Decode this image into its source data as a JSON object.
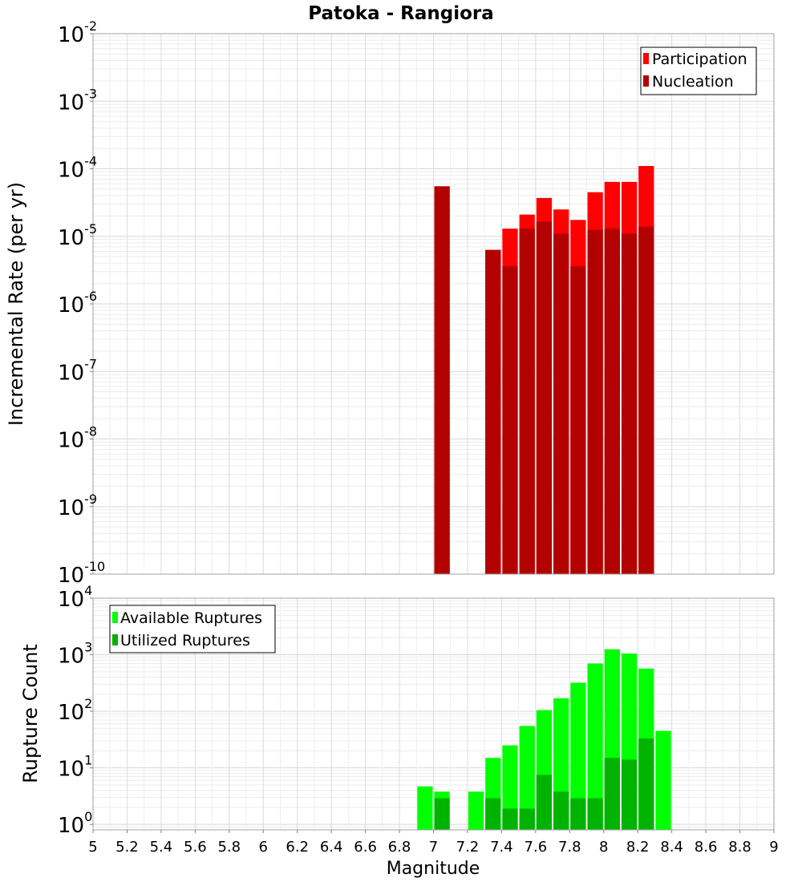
{
  "chart_data": [
    {
      "type": "bar",
      "title": "Patoka - Rangiora",
      "ylabel": "Incremental Rate (per yr)",
      "yscale": "log",
      "ylim": [
        1e-10,
        0.01
      ],
      "xlim": [
        5,
        9
      ],
      "legend_position": "top-right",
      "grid": true,
      "yticks": [
        {
          "base": "10",
          "exp": "-10"
        },
        {
          "base": "10",
          "exp": "-9"
        },
        {
          "base": "10",
          "exp": "-8"
        },
        {
          "base": "10",
          "exp": "-7"
        },
        {
          "base": "10",
          "exp": "-6"
        },
        {
          "base": "10",
          "exp": "-5"
        },
        {
          "base": "10",
          "exp": "-4"
        },
        {
          "base": "10",
          "exp": "-3"
        },
        {
          "base": "10",
          "exp": "-2"
        }
      ],
      "series": [
        {
          "name": "Participation",
          "color": "#ff0000",
          "x": [
            7.05,
            7.35,
            7.45,
            7.55,
            7.65,
            7.75,
            7.85,
            7.95,
            8.05,
            8.15,
            8.25
          ],
          "values": [
            5.5e-05,
            6.3e-06,
            1.3e-05,
            2.1e-05,
            3.7e-05,
            2.5e-05,
            1.75e-05,
            4.5e-05,
            6.4e-05,
            6.4e-05,
            0.00011
          ]
        },
        {
          "name": "Nucleation",
          "color": "#b30000",
          "x": [
            7.05,
            7.35,
            7.45,
            7.55,
            7.65,
            7.75,
            7.85,
            7.95,
            8.05,
            8.15,
            8.25
          ],
          "values": [
            5.5e-05,
            6.3e-06,
            3.6e-06,
            1.3e-05,
            1.65e-05,
            1.1e-05,
            3.6e-06,
            1.25e-05,
            1.3e-05,
            1.1e-05,
            1.4e-05
          ]
        }
      ]
    },
    {
      "type": "bar",
      "ylabel": "Rupture Count",
      "xlabel": "Magnitude",
      "yscale": "log",
      "ylim": [
        0.8,
        10000
      ],
      "xlim": [
        5,
        9
      ],
      "legend_position": "top-left",
      "grid": true,
      "xticks": [
        "5",
        "5.2",
        "5.4",
        "5.6",
        "5.8",
        "6",
        "6.2",
        "6.4",
        "6.6",
        "6.8",
        "7",
        "7.2",
        "7.4",
        "7.6",
        "7.8",
        "8",
        "8.2",
        "8.4",
        "8.6",
        "8.8",
        "9"
      ],
      "yticks": [
        {
          "base": "10",
          "exp": "0"
        },
        {
          "base": "10",
          "exp": "1"
        },
        {
          "base": "10",
          "exp": "2"
        },
        {
          "base": "10",
          "exp": "3"
        },
        {
          "base": "10",
          "exp": "4"
        }
      ],
      "series": [
        {
          "name": "Available Ruptures",
          "color": "#00ff00",
          "x": [
            6.95,
            7.05,
            7.25,
            7.35,
            7.45,
            7.55,
            7.65,
            7.75,
            7.85,
            7.95,
            8.05,
            8.15,
            8.25,
            8.35
          ],
          "values": [
            4.7,
            3.8,
            3.8,
            15,
            25,
            55,
            105,
            170,
            320,
            700,
            1250,
            1050,
            570,
            45
          ]
        },
        {
          "name": "Utilized Ruptures",
          "color": "#00b300",
          "x": [
            7.05,
            7.35,
            7.45,
            7.55,
            7.65,
            7.75,
            7.85,
            7.95,
            8.05,
            8.15,
            8.25
          ],
          "values": [
            2.9,
            2.9,
            1.9,
            1.9,
            7.5,
            3.8,
            2.9,
            2.9,
            15,
            14,
            33
          ]
        }
      ]
    }
  ]
}
